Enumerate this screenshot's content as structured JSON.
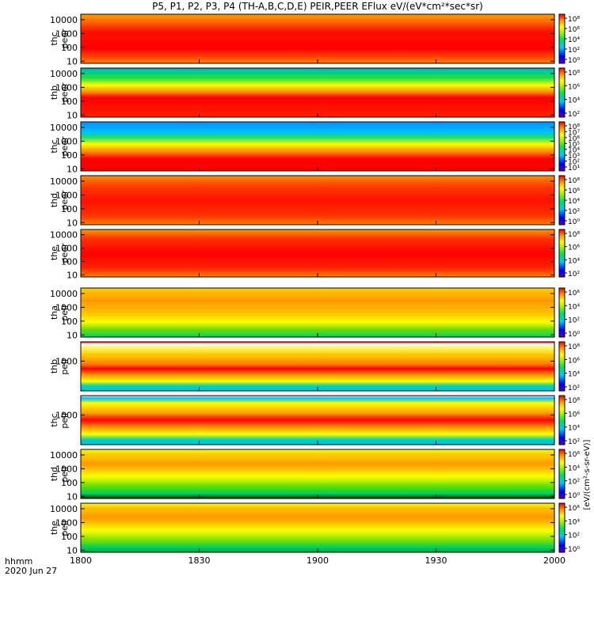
{
  "title": "P5, P1, P2, P3, P4 (TH-A,B,C,D,E) PEIR,PEER EFlux eV/(eV*cm²*sec*sr)",
  "colorbar_label": "[eV/(cm²-s-sr-eV)]",
  "time_axis": {
    "label_line1": "hhmm",
    "label_line2": "2020 Jun 27",
    "ticks": [
      "1800",
      "1830",
      "1900",
      "1930",
      "2000"
    ],
    "range_minutes": [
      0,
      120
    ],
    "tick_minutes": [
      0,
      30,
      60,
      90,
      120
    ]
  },
  "chart_data": {
    "type": "heatmap",
    "description_of_axes": "x: time (hhmm); y: energy (eV, log scale); color: energy flux (log scale)",
    "panels": [
      {
        "probe": "thc",
        "species": "peer",
        "yticks": [
          "10",
          "100",
          "1000",
          "10000"
        ],
        "ylim_eV": [
          7,
          25000
        ],
        "colorbar_ticks": [
          "10⁸",
          "10⁶",
          "10⁴",
          "10²",
          "10⁰"
        ]
      },
      {
        "probe": "thb",
        "species": "peer",
        "yticks": [
          "10",
          "100",
          "1000",
          "10000"
        ],
        "ylim_eV": [
          7,
          25000
        ],
        "colorbar_ticks": [
          "10⁸",
          "10⁶",
          "10⁴",
          "10²"
        ]
      },
      {
        "probe": "thc",
        "species": "peer",
        "yticks": [
          "10",
          "100",
          "1000",
          "10000"
        ],
        "ylim_eV": [
          7,
          25000
        ],
        "colorbar_ticks": [
          "10⁸",
          "10⁷",
          "10⁶",
          "10⁵",
          "10⁴",
          "10³",
          "10²",
          "10¹"
        ]
      },
      {
        "probe": "thd",
        "species": "peer",
        "yticks": [
          "10",
          "100",
          "1000",
          "10000"
        ],
        "ylim_eV": [
          7,
          25000
        ],
        "colorbar_ticks": [
          "10⁸",
          "10⁶",
          "10⁴",
          "10²",
          "10⁰"
        ]
      },
      {
        "probe": "the",
        "species": "peer",
        "yticks": [
          "10",
          "100",
          "1000",
          "10000"
        ],
        "ylim_eV": [
          7,
          25000
        ],
        "colorbar_ticks": [
          "10⁸",
          "10⁶",
          "10⁴",
          "10²"
        ]
      },
      {
        "probe": "tha",
        "species": "peir",
        "yticks": [
          "10",
          "100",
          "1000",
          "10000"
        ],
        "ylim_eV": [
          7,
          25000
        ],
        "colorbar_ticks": [
          "10⁶",
          "10⁴",
          "10²",
          "10⁰"
        ]
      },
      {
        "probe": "thb",
        "species": "peir",
        "yticks": [
          "1000"
        ],
        "ylim_eV": [
          7,
          25000
        ],
        "colorbar_ticks": [
          "10⁸",
          "10⁶",
          "10⁴",
          "10²"
        ]
      },
      {
        "probe": "thc",
        "species": "peir",
        "yticks": [
          "1000"
        ],
        "ylim_eV": [
          7,
          25000
        ],
        "colorbar_ticks": [
          "10⁸",
          "10⁶",
          "10⁴",
          "10²"
        ]
      },
      {
        "probe": "thd",
        "species": "peir",
        "yticks": [
          "10",
          "100",
          "1000",
          "10000"
        ],
        "ylim_eV": [
          7,
          25000
        ],
        "colorbar_ticks": [
          "10⁶",
          "10⁴",
          "10²",
          "10⁰"
        ]
      },
      {
        "probe": "the",
        "species": "peir",
        "yticks": [
          "10",
          "100",
          "1000",
          "10000"
        ],
        "ylim_eV": [
          7,
          25000
        ],
        "colorbar_ticks": [
          "10⁶",
          "10⁴",
          "10²",
          "10⁰"
        ]
      }
    ]
  }
}
